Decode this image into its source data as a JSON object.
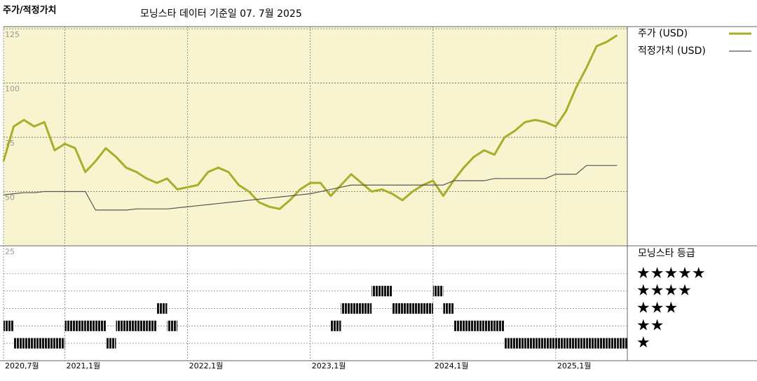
{
  "chart_data": [
    {
      "type": "line",
      "title": "주가/적정가치",
      "subtitle": "모닝스타 데이터 기준일 07. 7월 2025",
      "x": [
        "2020-07",
        "2020-08",
        "2020-09",
        "2020-10",
        "2020-11",
        "2020-12",
        "2021-01",
        "2021-02",
        "2021-03",
        "2021-04",
        "2021-05",
        "2021-06",
        "2021-07",
        "2021-08",
        "2021-09",
        "2021-10",
        "2021-11",
        "2021-12",
        "2022-01",
        "2022-02",
        "2022-03",
        "2022-04",
        "2022-05",
        "2022-06",
        "2022-07",
        "2022-08",
        "2022-09",
        "2022-10",
        "2022-11",
        "2022-12",
        "2023-01",
        "2023-02",
        "2023-03",
        "2023-04",
        "2023-05",
        "2023-06",
        "2023-07",
        "2023-08",
        "2023-09",
        "2023-10",
        "2023-11",
        "2023-12",
        "2024-01",
        "2024-02",
        "2024-03",
        "2024-04",
        "2024-05",
        "2024-06",
        "2024-07",
        "2024-08",
        "2024-09",
        "2024-10",
        "2024-11",
        "2024-12",
        "2025-01",
        "2025-02",
        "2025-03",
        "2025-04",
        "2025-05",
        "2025-06",
        "2025-07"
      ],
      "series": [
        {
          "name": "주가 (USD)",
          "color": "#a9ad2b",
          "values": [
            64,
            80,
            83,
            80,
            82,
            69,
            72,
            70,
            59,
            64,
            70,
            66,
            61,
            59,
            56,
            54,
            56,
            51,
            52,
            53,
            59,
            61,
            59,
            53,
            50,
            45,
            43,
            42,
            46,
            51,
            54,
            54,
            48,
            53,
            58,
            54,
            50,
            51,
            49,
            46,
            50,
            53,
            55,
            48,
            55,
            61,
            66,
            69,
            67,
            75,
            78,
            82,
            83,
            82,
            80,
            87,
            98,
            107,
            117,
            119,
            122
          ]
        },
        {
          "name": "적정가치 (USD)",
          "color": "#555555",
          "values": [
            48.5,
            49,
            49.5,
            49.5,
            50,
            50,
            50,
            50,
            50,
            41.5,
            41.5,
            41.5,
            41.5,
            42,
            42,
            42,
            42,
            42.5,
            43,
            43.5,
            44,
            44.5,
            45,
            45.5,
            46,
            46.5,
            47,
            47.5,
            48,
            48.5,
            49,
            50,
            51,
            52,
            53,
            53,
            53,
            53,
            53,
            53,
            53,
            53,
            53,
            53,
            55,
            55,
            55,
            55,
            56,
            56,
            56,
            56,
            56,
            56,
            58,
            58,
            58,
            62,
            62,
            62,
            62
          ]
        }
      ],
      "xlim": [
        "2020-07",
        "2025-08"
      ],
      "xticks": [
        {
          "value": "2020-07",
          "label": "2020,7월"
        },
        {
          "value": "2021-01",
          "label": "2021,1월"
        },
        {
          "value": "2022-01",
          "label": "2022,1월"
        },
        {
          "value": "2023-01",
          "label": "2023,1월"
        },
        {
          "value": "2024-01",
          "label": "2024,1월"
        },
        {
          "value": "2025-01",
          "label": "2025,1월"
        }
      ],
      "ylim": [
        25,
        126
      ],
      "yticks": [
        125,
        100,
        75,
        50,
        25
      ],
      "grid": true
    },
    {
      "type": "rating",
      "legend_title": "모닝스타 등급",
      "x": [
        "2020-07",
        "2020-08",
        "2020-09",
        "2020-10",
        "2020-11",
        "2020-12",
        "2021-01",
        "2021-02",
        "2021-03",
        "2021-04",
        "2021-05",
        "2021-06",
        "2021-07",
        "2021-08",
        "2021-09",
        "2021-10",
        "2021-11",
        "2021-12",
        "2022-01",
        "2022-02",
        "2022-03",
        "2022-04",
        "2022-05",
        "2022-06",
        "2022-07",
        "2022-08",
        "2022-09",
        "2022-10",
        "2022-11",
        "2022-12",
        "2023-01",
        "2023-02",
        "2023-03",
        "2023-04",
        "2023-05",
        "2023-06",
        "2023-07",
        "2023-08",
        "2023-09",
        "2023-10",
        "2023-11",
        "2023-12",
        "2024-01",
        "2024-02",
        "2024-03",
        "2024-04",
        "2024-05",
        "2024-06",
        "2024-07",
        "2024-08",
        "2024-09",
        "2024-10",
        "2024-11",
        "2024-12",
        "2025-01",
        "2025-02",
        "2025-03",
        "2025-04",
        "2025-05",
        "2025-06",
        "2025-07"
      ],
      "values": [
        2,
        1,
        1,
        1,
        1,
        1,
        2,
        2,
        2,
        2,
        1,
        2,
        2,
        2,
        2,
        3,
        2,
        null,
        null,
        null,
        null,
        null,
        null,
        null,
        null,
        null,
        null,
        null,
        null,
        null,
        null,
        null,
        2,
        3,
        3,
        3,
        4,
        4,
        3,
        3,
        3,
        3,
        4,
        3,
        2,
        2,
        2,
        2,
        2,
        1,
        1,
        1,
        1,
        1,
        1,
        1,
        1,
        1,
        1,
        1,
        1
      ],
      "color": "#111111",
      "ylim": [
        0,
        6.6
      ],
      "yticks": [
        {
          "value": 5,
          "label": "★★★★★"
        },
        {
          "value": 4,
          "label": "★★★★"
        },
        {
          "value": 3,
          "label": "★★★"
        },
        {
          "value": 2,
          "label": "★★"
        },
        {
          "value": 1,
          "label": "★"
        }
      ]
    }
  ]
}
